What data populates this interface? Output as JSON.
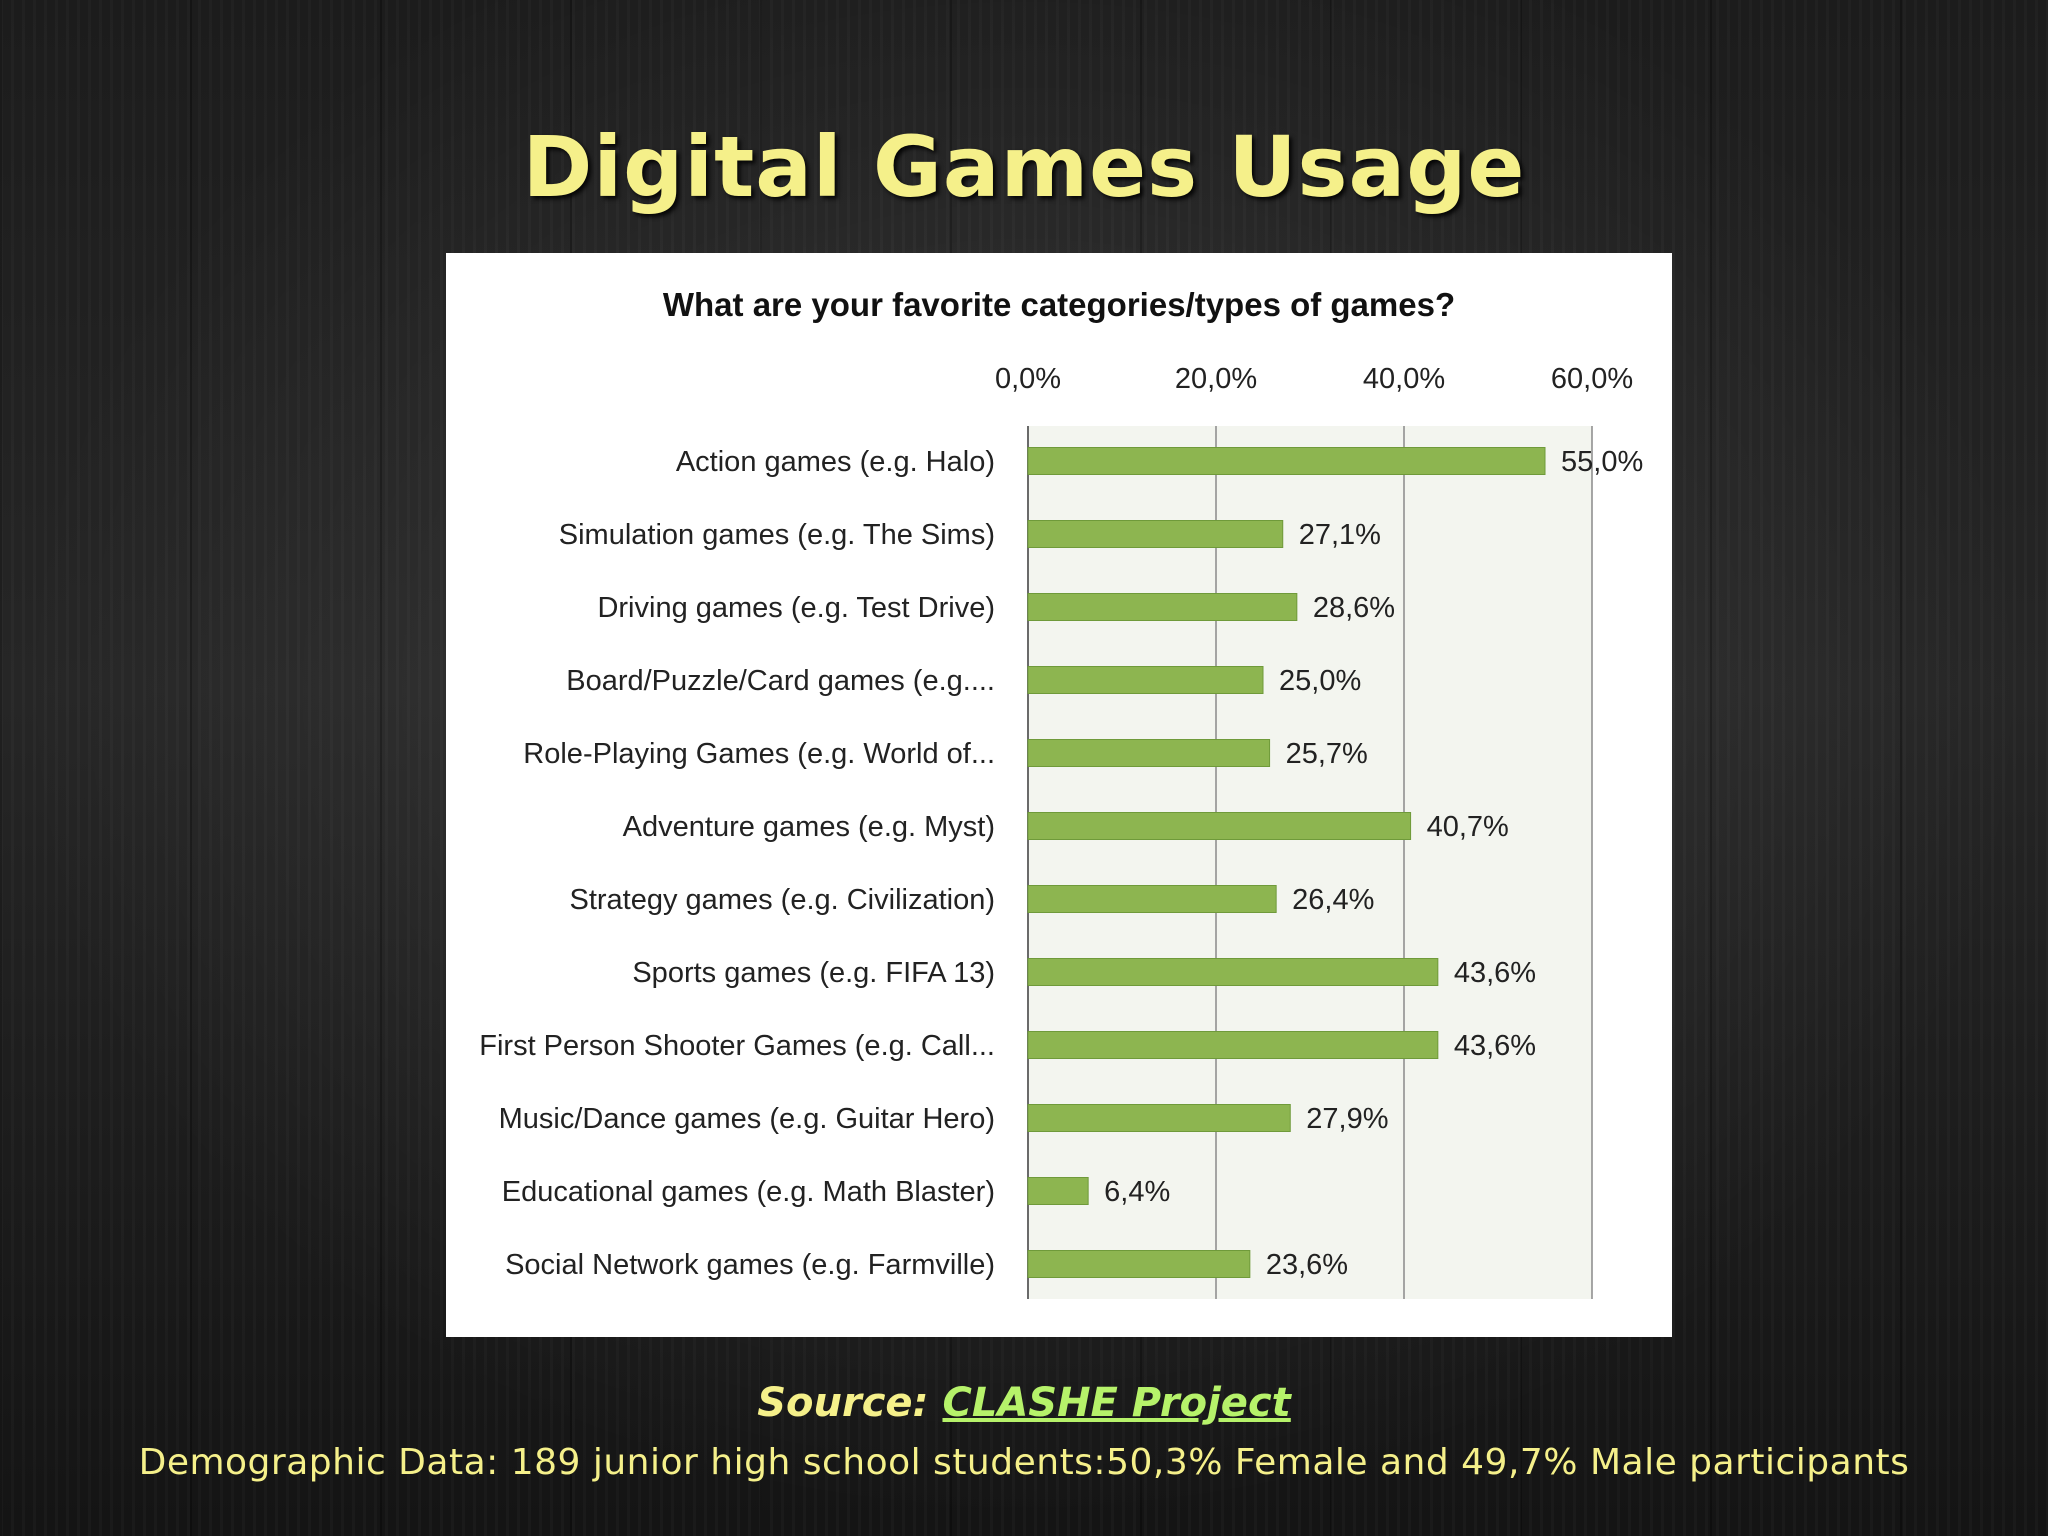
{
  "slide": {
    "title": "Digital Games Usage",
    "source_prefix": "Source:",
    "source_link": "CLASHE Project",
    "demographic_note": "Demographic Data: 189 junior high school students:50,3% Female and 49,7% Male participants"
  },
  "colors": {
    "title": "#f5f08a",
    "source_link": "#b6f26a",
    "bar_fill": "#8db550",
    "bar_stroke": "#6f9a3a",
    "plot_background": "#f3f5ef",
    "gridline": "#8a8a8a"
  },
  "chart_data": {
    "type": "bar",
    "orientation": "horizontal",
    "title": "What are your favorite categories/types of games?",
    "xlabel": "",
    "ylabel": "",
    "x_axis_position": "top",
    "xlim": [
      0,
      60
    ],
    "xticks": [
      0,
      20,
      40,
      60
    ],
    "xtick_labels": [
      "0,0%",
      "20,0%",
      "40,0%",
      "60,0%"
    ],
    "grid": true,
    "legend": "none",
    "categories": [
      "Action games (e.g. Halo)",
      "Simulation games (e.g. The Sims)",
      "Driving games (e.g. Test Drive)",
      "Board/Puzzle/Card games (e.g....",
      "Role-Playing Games (e.g. World of...",
      "Adventure games (e.g. Myst)",
      "Strategy games (e.g. Civilization)",
      "Sports games (e.g. FIFA 13)",
      "First Person Shooter Games (e.g. Call...",
      "Music/Dance games (e.g. Guitar Hero)",
      "Educational games (e.g. Math Blaster)",
      "Social Network games (e.g. Farmville)"
    ],
    "values": [
      55.0,
      27.1,
      28.6,
      25.0,
      25.7,
      40.7,
      26.4,
      43.6,
      43.6,
      27.9,
      6.4,
      23.6
    ],
    "value_labels": [
      "55,0%",
      "27,1%",
      "28,6%",
      "25,0%",
      "25,7%",
      "40,7%",
      "26,4%",
      "43,6%",
      "43,6%",
      "27,9%",
      "6,4%",
      "23,6%"
    ]
  }
}
